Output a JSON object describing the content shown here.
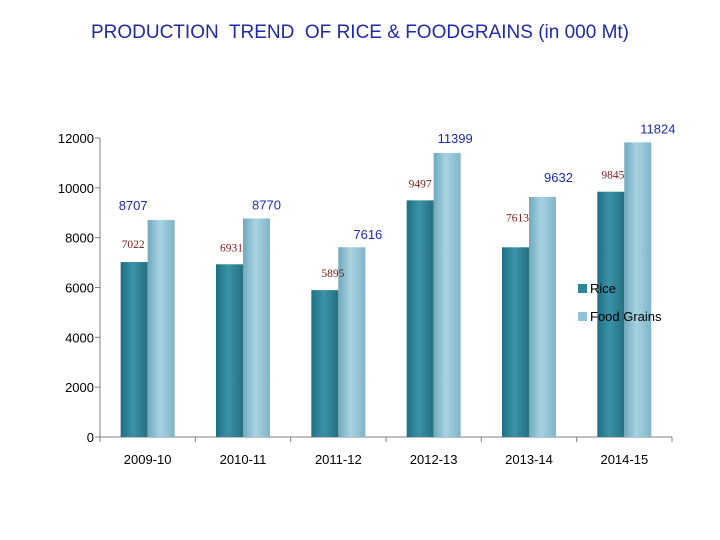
{
  "title": "PRODUCTION  TREND  OF RICE & FOODGRAINS (in 000 Mt)",
  "chart_data": {
    "type": "bar",
    "title": "PRODUCTION  TREND  OF RICE & FOODGRAINS (in 000 Mt)",
    "xlabel": "",
    "ylabel": "",
    "categories": [
      "2009-10",
      "2010-11",
      "2011-12",
      "2012-13",
      "2013-14",
      "2014-15"
    ],
    "series": [
      {
        "name": "Rice",
        "values": [
          7022,
          6931,
          5895,
          9497,
          7613,
          9845
        ],
        "color": "#2f8498"
      },
      {
        "name": "Food Grains",
        "values": [
          8707,
          8770,
          7616,
          11399,
          9632,
          11824
        ],
        "color": "#8ec2d4"
      }
    ],
    "ylim": [
      0,
      12000
    ],
    "yticks": [
      "0",
      "2000",
      "4000",
      "6000",
      "8000",
      "10000",
      "12000"
    ],
    "legend_position": "right",
    "label_colors": {
      "Rice": "#7a1b1b",
      "Food Grains": "#1f2aa8"
    }
  }
}
